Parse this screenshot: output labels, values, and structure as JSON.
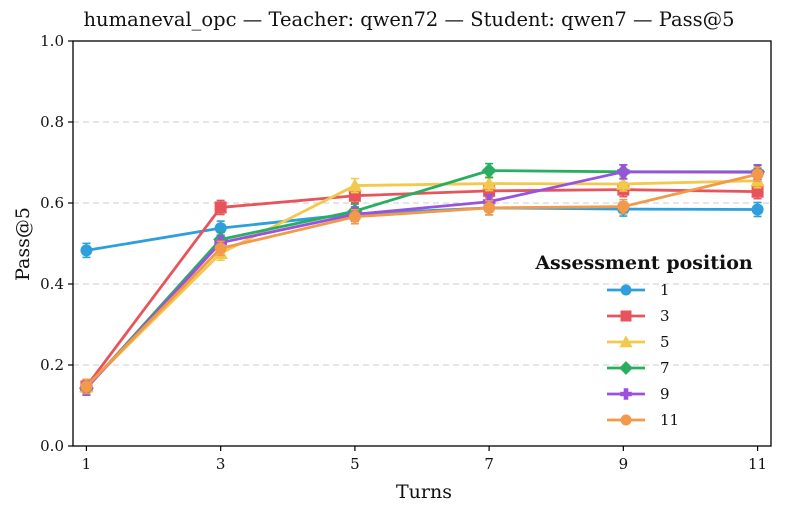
{
  "chart_data": {
    "type": "line",
    "title": "humaneval_opc — Teacher: qwen72 — Student: qwen7 — Pass@5",
    "xlabel": "Turns",
    "ylabel": "Pass@5",
    "x": [
      1,
      3,
      5,
      7,
      9,
      11
    ],
    "x_ticks": [
      "1",
      "3",
      "5",
      "7",
      "9",
      "11"
    ],
    "y_ticks": [
      "0.0",
      "0.2",
      "0.4",
      "0.6",
      "0.8",
      "1.0"
    ],
    "xlim": [
      0.8,
      11.2
    ],
    "ylim": [
      0,
      1
    ],
    "grid": "horizontal dashed",
    "legend": {
      "title": "Assessment position",
      "placement": "center-right"
    },
    "series": [
      {
        "name": "1",
        "color": "#2e9fdc",
        "marker": "circle",
        "values": [
          0.483,
          0.538,
          0.573,
          0.588,
          0.585,
          0.584
        ]
      },
      {
        "name": "3",
        "color": "#e8545b",
        "marker": "square",
        "values": [
          0.147,
          0.589,
          0.618,
          0.63,
          0.633,
          0.628
        ]
      },
      {
        "name": "5",
        "color": "#f2c94c",
        "marker": "triangle",
        "values": [
          0.147,
          0.476,
          0.643,
          0.648,
          0.647,
          0.655
        ]
      },
      {
        "name": "7",
        "color": "#27ae60",
        "marker": "diamond",
        "values": [
          0.143,
          0.51,
          0.58,
          0.68,
          0.677,
          0.677
        ]
      },
      {
        "name": "9",
        "color": "#9b51e0",
        "marker": "plus",
        "values": [
          0.143,
          0.502,
          0.572,
          0.603,
          0.677,
          0.676
        ]
      },
      {
        "name": "11",
        "color": "#f2994a",
        "marker": "circle",
        "values": [
          0.147,
          0.488,
          0.566,
          0.588,
          0.591,
          0.671
        ]
      }
    ]
  }
}
